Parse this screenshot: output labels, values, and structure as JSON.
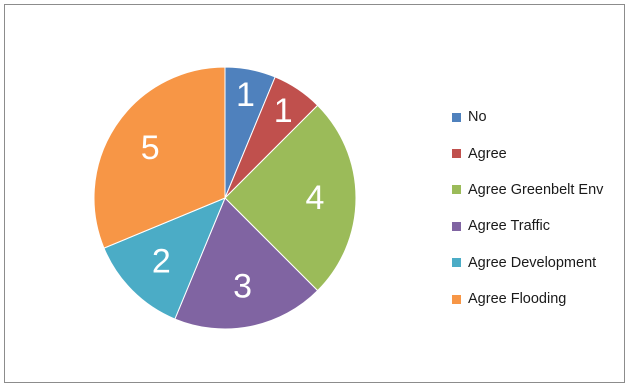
{
  "chart_data": {
    "type": "pie",
    "categories": [
      "No",
      "Agree",
      "Agree Greenbelt Env",
      "Agree Traffic",
      "Agree Development",
      "Agree Flooding"
    ],
    "values": [
      1,
      1,
      4,
      3,
      2,
      5
    ],
    "colors": [
      "#4f81bd",
      "#c0504d",
      "#9bbb59",
      "#8064a2",
      "#4bacc6",
      "#f79646"
    ],
    "legend_position": "right",
    "data_labels": [
      "1",
      "1",
      "4",
      "3",
      "2",
      "5"
    ]
  }
}
